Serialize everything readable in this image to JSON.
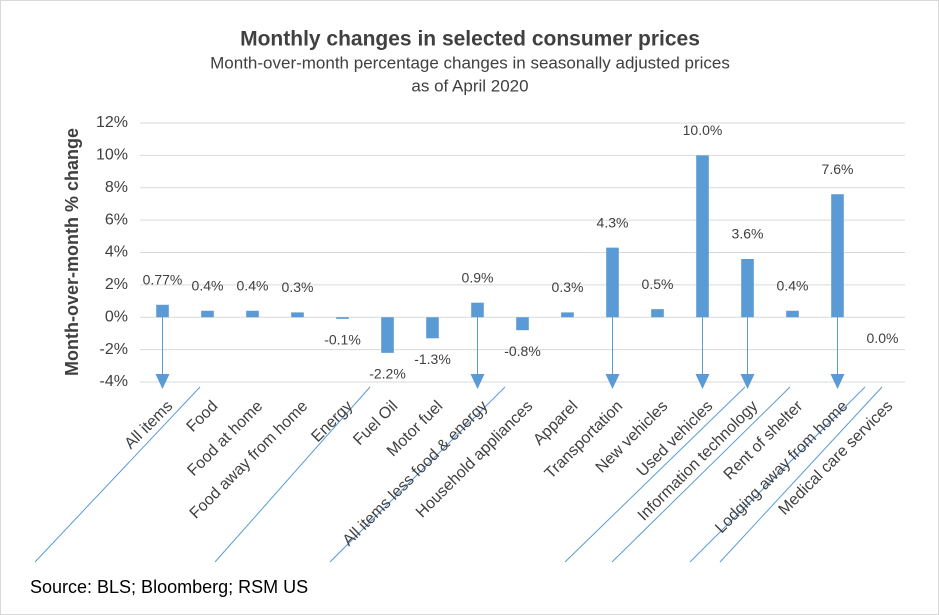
{
  "chart_data": {
    "type": "bar",
    "title": "Monthly changes in selected consumer prices",
    "subtitle": [
      "Month-over-month percentage changes in seasonally adjusted prices",
      "as of April 2020"
    ],
    "y_label": "Month-over-month % change",
    "source": "Source: BLS; Bloomberg; RSM US",
    "categories": [
      "All items",
      "Food",
      "Food at home",
      "Food away from home",
      "Energy",
      "Fuel Oil",
      "Motor fuel",
      "All items less food & energy",
      "Household appliances",
      "Apparel",
      "Transportation",
      "New vehicles",
      "Used vehicles",
      "Information technology",
      "Rent of shelter",
      "Lodging away from home",
      "Medical care services"
    ],
    "values": [
      0.77,
      0.4,
      0.4,
      0.3,
      -0.1,
      -2.2,
      -1.3,
      0.9,
      -0.8,
      0.3,
      4.3,
      0.5,
      10.0,
      3.6,
      0.4,
      7.6,
      0.0
    ],
    "value_labels": [
      "0.77%",
      "0.4%",
      "0.4%",
      "0.3%",
      "-0.1%",
      "-2.2%",
      "-1.3%",
      "0.9%",
      "-0.8%",
      "0.3%",
      "4.3%",
      "0.5%",
      "10.0%",
      "3.6%",
      "0.4%",
      "7.6%",
      "0.0%"
    ],
    "color": "#5b9bd5",
    "ylim": [
      -4,
      12
    ],
    "yticks": [
      {
        "value": -4,
        "label": "-4%"
      },
      {
        "value": -2,
        "label": "-2%"
      },
      {
        "value": 0,
        "label": "0%"
      },
      {
        "value": 2,
        "label": "2%"
      },
      {
        "value": 4,
        "label": "4%"
      },
      {
        "value": 6,
        "label": "6%"
      },
      {
        "value": 8,
        "label": "8%"
      },
      {
        "value": 10,
        "label": "10%"
      },
      {
        "value": 12,
        "label": "12%"
      }
    ],
    "grid": true
  }
}
